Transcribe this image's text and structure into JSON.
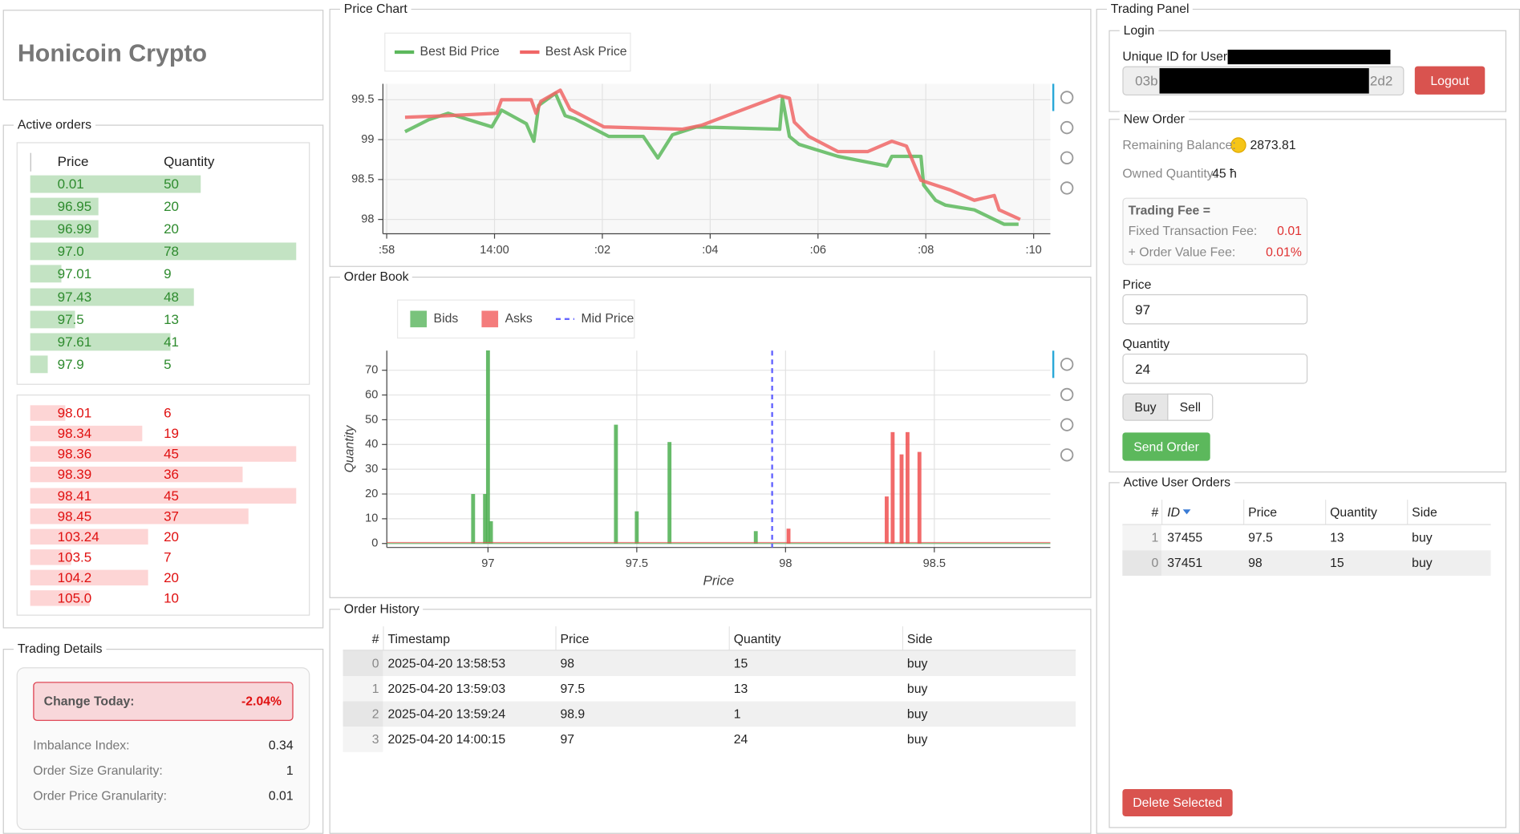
{
  "header": {
    "title": "Honicoin Crypto"
  },
  "active_orders": {
    "title": "Active orders",
    "columns": [
      "Price",
      "Quantity"
    ],
    "bids": [
      {
        "price": "0.01",
        "quantity": 50
      },
      {
        "price": "96.95",
        "quantity": 20
      },
      {
        "price": "96.99",
        "quantity": 20
      },
      {
        "price": "97.0",
        "quantity": 78
      },
      {
        "price": "97.01",
        "quantity": 9
      },
      {
        "price": "97.43",
        "quantity": 48
      },
      {
        "price": "97.5",
        "quantity": 13
      },
      {
        "price": "97.61",
        "quantity": 41
      },
      {
        "price": "97.9",
        "quantity": 5
      }
    ],
    "asks": [
      {
        "price": "98.01",
        "quantity": 6
      },
      {
        "price": "98.34",
        "quantity": 19
      },
      {
        "price": "98.36",
        "quantity": 45
      },
      {
        "price": "98.39",
        "quantity": 36
      },
      {
        "price": "98.41",
        "quantity": 45
      },
      {
        "price": "98.45",
        "quantity": 37
      },
      {
        "price": "103.24",
        "quantity": 20
      },
      {
        "price": "103.5",
        "quantity": 7
      },
      {
        "price": "104.2",
        "quantity": 20
      },
      {
        "price": "105.0",
        "quantity": 10
      }
    ]
  },
  "trading_details": {
    "title": "Trading Details",
    "change_today": {
      "label": "Change Today:",
      "value": "-2.04%"
    },
    "rows": [
      {
        "label": "Imbalance Index:",
        "value": 0.34
      },
      {
        "label": "Order Size Granularity:",
        "value": 1
      },
      {
        "label": "Order Price Granularity:",
        "value": 0.01
      }
    ]
  },
  "chart_data": [
    {
      "type": "line",
      "title": "Price Chart",
      "legend": "top-left",
      "grid": true,
      "xlim": [
        57.93,
        70.31
      ],
      "xticks": [
        {
          "value": 58,
          "label": ":58"
        },
        {
          "value": 60,
          "label": "14:00"
        },
        {
          "value": 62,
          "label": ":02"
        },
        {
          "value": 64,
          "label": ":04"
        },
        {
          "value": 66,
          "label": ":06"
        },
        {
          "value": 68,
          "label": ":08"
        },
        {
          "value": 70,
          "label": ":10"
        }
      ],
      "ylim": [
        97.82,
        99.7
      ],
      "yticks": [
        98,
        98.5,
        99,
        99.5
      ],
      "series": [
        {
          "name": "Best Bid Price",
          "color": "#5cb85c",
          "x": [
            58.34,
            58.78,
            59.14,
            59.95,
            60.13,
            60.59,
            60.73,
            60.82,
            61.13,
            61.31,
            61.49,
            62.12,
            62.76,
            63.03,
            63.3,
            63.75,
            65.29,
            65.34,
            65.47,
            65.65,
            66.37,
            67.28,
            67.37,
            67.91,
            67.96,
            68.18,
            68.36,
            68.9,
            69.45,
            69.72
          ],
          "values": [
            99.1,
            99.25,
            99.33,
            99.16,
            99.37,
            99.2,
            98.98,
            99.43,
            99.58,
            99.3,
            99.26,
            99.04,
            99.04,
            98.77,
            99.06,
            99.16,
            99.13,
            99.52,
            99.04,
            98.94,
            98.79,
            98.67,
            98.79,
            98.79,
            98.43,
            98.24,
            98.18,
            98.12,
            97.94,
            97.94
          ]
        },
        {
          "name": "Best Ask Price",
          "color": "#f06666",
          "x": [
            58.34,
            59.14,
            60.04,
            60.13,
            60.68,
            60.77,
            60.86,
            61.22,
            61.4,
            62.03,
            63.48,
            63.84,
            65.29,
            65.47,
            65.56,
            65.83,
            66.37,
            66.92,
            67.37,
            67.64,
            67.91,
            68.18,
            68.45,
            68.9,
            69.27,
            69.36,
            69.75
          ],
          "values": [
            99.28,
            99.3,
            99.33,
            99.5,
            99.5,
            99.33,
            99.48,
            99.62,
            99.38,
            99.16,
            99.13,
            99.18,
            99.55,
            99.52,
            99.22,
            99.04,
            98.85,
            98.85,
            98.98,
            98.92,
            98.49,
            98.43,
            98.37,
            98.24,
            98.3,
            98.12,
            98.0
          ]
        }
      ]
    },
    {
      "type": "bar",
      "title": "Order Book",
      "legend": "top-left",
      "grid": true,
      "x_label": "Price",
      "y_label": "Quantity",
      "xlim": [
        96.66,
        98.89
      ],
      "xticks": [
        97,
        97.5,
        98,
        98.5
      ],
      "ylim": [
        -1.6,
        77.9
      ],
      "yticks": [
        0,
        10,
        20,
        30,
        40,
        50,
        60,
        70
      ],
      "series": [
        {
          "name": "Bids",
          "color": "#4caf50",
          "x": [
            96.95,
            96.99,
            97.0,
            97.01,
            97.43,
            97.5,
            97.61,
            97.9
          ],
          "values": [
            20,
            20,
            78,
            9,
            48,
            13,
            41,
            5
          ]
        },
        {
          "name": "Asks",
          "color": "#f05050",
          "x": [
            98.01,
            98.34,
            98.36,
            98.39,
            98.41,
            98.45
          ],
          "values": [
            6,
            19,
            45,
            36,
            45,
            37
          ]
        }
      ],
      "mid_price": {
        "name": "Mid Price",
        "value": 97.955,
        "color": "#6666ff"
      }
    }
  ],
  "order_history": {
    "title": "Order History",
    "columns": [
      "#",
      "Timestamp",
      "Price",
      "Quantity",
      "Side"
    ],
    "rows": [
      [
        0,
        "2025-04-20 13:58:53",
        98,
        15,
        "buy"
      ],
      [
        1,
        "2025-04-20 13:59:03",
        97.5,
        13,
        "buy"
      ],
      [
        2,
        "2025-04-20 13:59:24",
        98.9,
        1,
        "buy"
      ],
      [
        3,
        "2025-04-20 14:00:15",
        97,
        24,
        "buy"
      ]
    ]
  },
  "trading_panel": {
    "title": "Trading Panel",
    "login": {
      "title": "Login",
      "user_id_label": "Unique ID for User:",
      "user_id_prefix": "03b",
      "user_id_suffix": "2d2",
      "logout": "Logout"
    },
    "new_order": {
      "title": "New Order",
      "balance_label": "Remaining Balance:",
      "balance": 2873.81,
      "owned_label": "Owned Quantity:",
      "owned": "45 ħ",
      "fee_title": "Trading Fee =",
      "fees": [
        {
          "label": "Fixed Transaction Fee:",
          "value": 0.01
        },
        {
          "label": "+ Order Value Fee:",
          "value": "0.01%"
        }
      ],
      "price_label": "Price",
      "price": 97,
      "quantity_label": "Quantity",
      "quantity": 24,
      "buy": "Buy",
      "sell": "Sell",
      "send": "Send Order"
    },
    "active_user_orders": {
      "title": "Active User Orders",
      "columns": [
        "#",
        "ID",
        "Price",
        "Quantity",
        "Side"
      ],
      "rows": [
        [
          1,
          37455,
          97.5,
          13,
          "buy"
        ],
        [
          0,
          37451,
          98,
          15,
          "buy"
        ]
      ],
      "delete": "Delete Selected"
    }
  }
}
